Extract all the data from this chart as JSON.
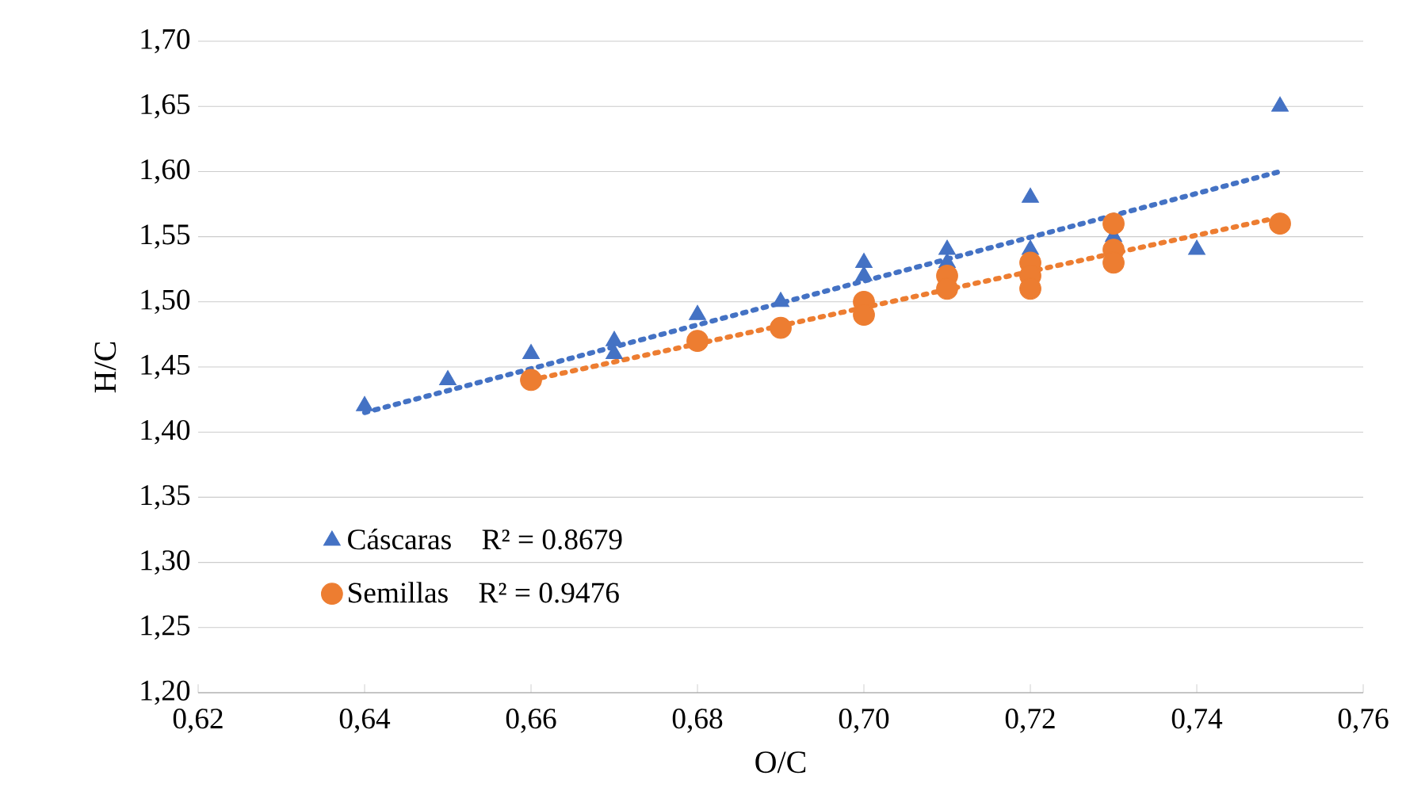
{
  "chart_data": {
    "type": "scatter",
    "xlabel": "O/C",
    "ylabel": "H/C",
    "xlim": [
      0.62,
      0.76
    ],
    "xticks": [
      {
        "value": 0.62,
        "label": "0,62"
      },
      {
        "value": 0.64,
        "label": "0,64"
      },
      {
        "value": 0.66,
        "label": "0,66"
      },
      {
        "value": 0.68,
        "label": "0,68"
      },
      {
        "value": 0.7,
        "label": "0,70"
      },
      {
        "value": 0.72,
        "label": "0,72"
      },
      {
        "value": 0.74,
        "label": "0,74"
      },
      {
        "value": 0.76,
        "label": "0,76"
      }
    ],
    "ylim": [
      1.2,
      1.7
    ],
    "yticks": [
      {
        "value": 1.2,
        "label": "1,20"
      },
      {
        "value": 1.25,
        "label": "1,25"
      },
      {
        "value": 1.3,
        "label": "1,30"
      },
      {
        "value": 1.35,
        "label": "1,35"
      },
      {
        "value": 1.4,
        "label": "1,40"
      },
      {
        "value": 1.45,
        "label": "1,45"
      },
      {
        "value": 1.5,
        "label": "1,50"
      },
      {
        "value": 1.55,
        "label": "1,55"
      },
      {
        "value": 1.6,
        "label": "1,60"
      },
      {
        "value": 1.65,
        "label": "1,65"
      },
      {
        "value": 1.7,
        "label": "1,70"
      }
    ],
    "grid": "y",
    "legend": "bottom left",
    "annotations": [
      "R² = 0.8679",
      "R² = 0.9476"
    ],
    "series": [
      {
        "name": "Cáscaras",
        "color": "#4472c4",
        "marker": "triangle",
        "x": [
          0.64,
          0.65,
          0.66,
          0.67,
          0.67,
          0.68,
          0.69,
          0.7,
          0.7,
          0.71,
          0.71,
          0.72,
          0.72,
          0.73,
          0.74,
          0.75
        ],
        "values": [
          1.42,
          1.44,
          1.46,
          1.47,
          1.46,
          1.49,
          1.5,
          1.53,
          1.52,
          1.54,
          1.53,
          1.58,
          1.54,
          1.55,
          1.54,
          1.65
        ]
      },
      {
        "name": "Semillas",
        "color": "#ed7d31",
        "marker": "circle",
        "x": [
          0.66,
          0.68,
          0.69,
          0.7,
          0.7,
          0.71,
          0.71,
          0.72,
          0.72,
          0.72,
          0.73,
          0.73,
          0.73,
          0.75
        ],
        "values": [
          1.44,
          1.47,
          1.48,
          1.5,
          1.49,
          1.52,
          1.51,
          1.53,
          1.52,
          1.51,
          1.56,
          1.54,
          1.53,
          1.56
        ]
      },
      {
        "type": "line",
        "color": "#4472c4",
        "marker": "none",
        "line_style": "dotted",
        "x": [
          0.64,
          0.75
        ],
        "values": [
          1.415,
          1.6
        ]
      },
      {
        "type": "line",
        "color": "#ed7d31",
        "marker": "none",
        "line_style": "dotted",
        "x": [
          0.66,
          0.75
        ],
        "values": [
          1.44,
          1.565
        ]
      }
    ]
  }
}
